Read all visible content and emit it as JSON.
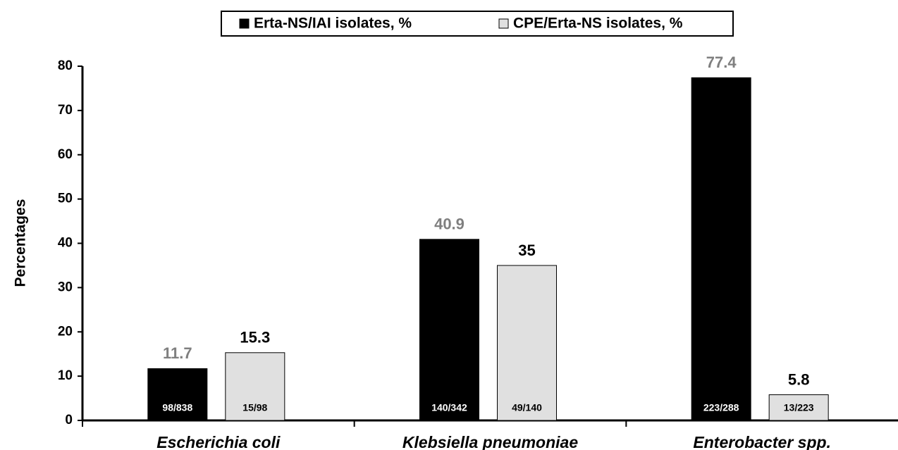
{
  "chart_data": {
    "type": "bar",
    "y_label": "Percentages",
    "categories": [
      "Escherichia coli",
      "Klebsiella pneumoniae",
      "Enterobacter spp."
    ],
    "series": [
      {
        "name": "Erta-NS/IAI isolates, %",
        "color": "#000000",
        "label_color": "#7f7f7f",
        "count_color": "#ffffff",
        "values": [
          11.7,
          40.9,
          77.4
        ],
        "counts": [
          "98/838",
          "140/342",
          "223/288"
        ]
      },
      {
        "name": "CPE/Erta-NS isolates, %",
        "color": "#e0e0e0",
        "label_color": "#000000",
        "count_color": "#000000",
        "values": [
          15.3,
          35,
          5.8
        ],
        "counts": [
          "15/98",
          "49/140",
          "13/223"
        ]
      }
    ],
    "ylim": [
      0,
      80
    ],
    "yticks": [
      0,
      10,
      20,
      30,
      40,
      50,
      60,
      70,
      80
    ],
    "grid": false,
    "legend": "top"
  }
}
